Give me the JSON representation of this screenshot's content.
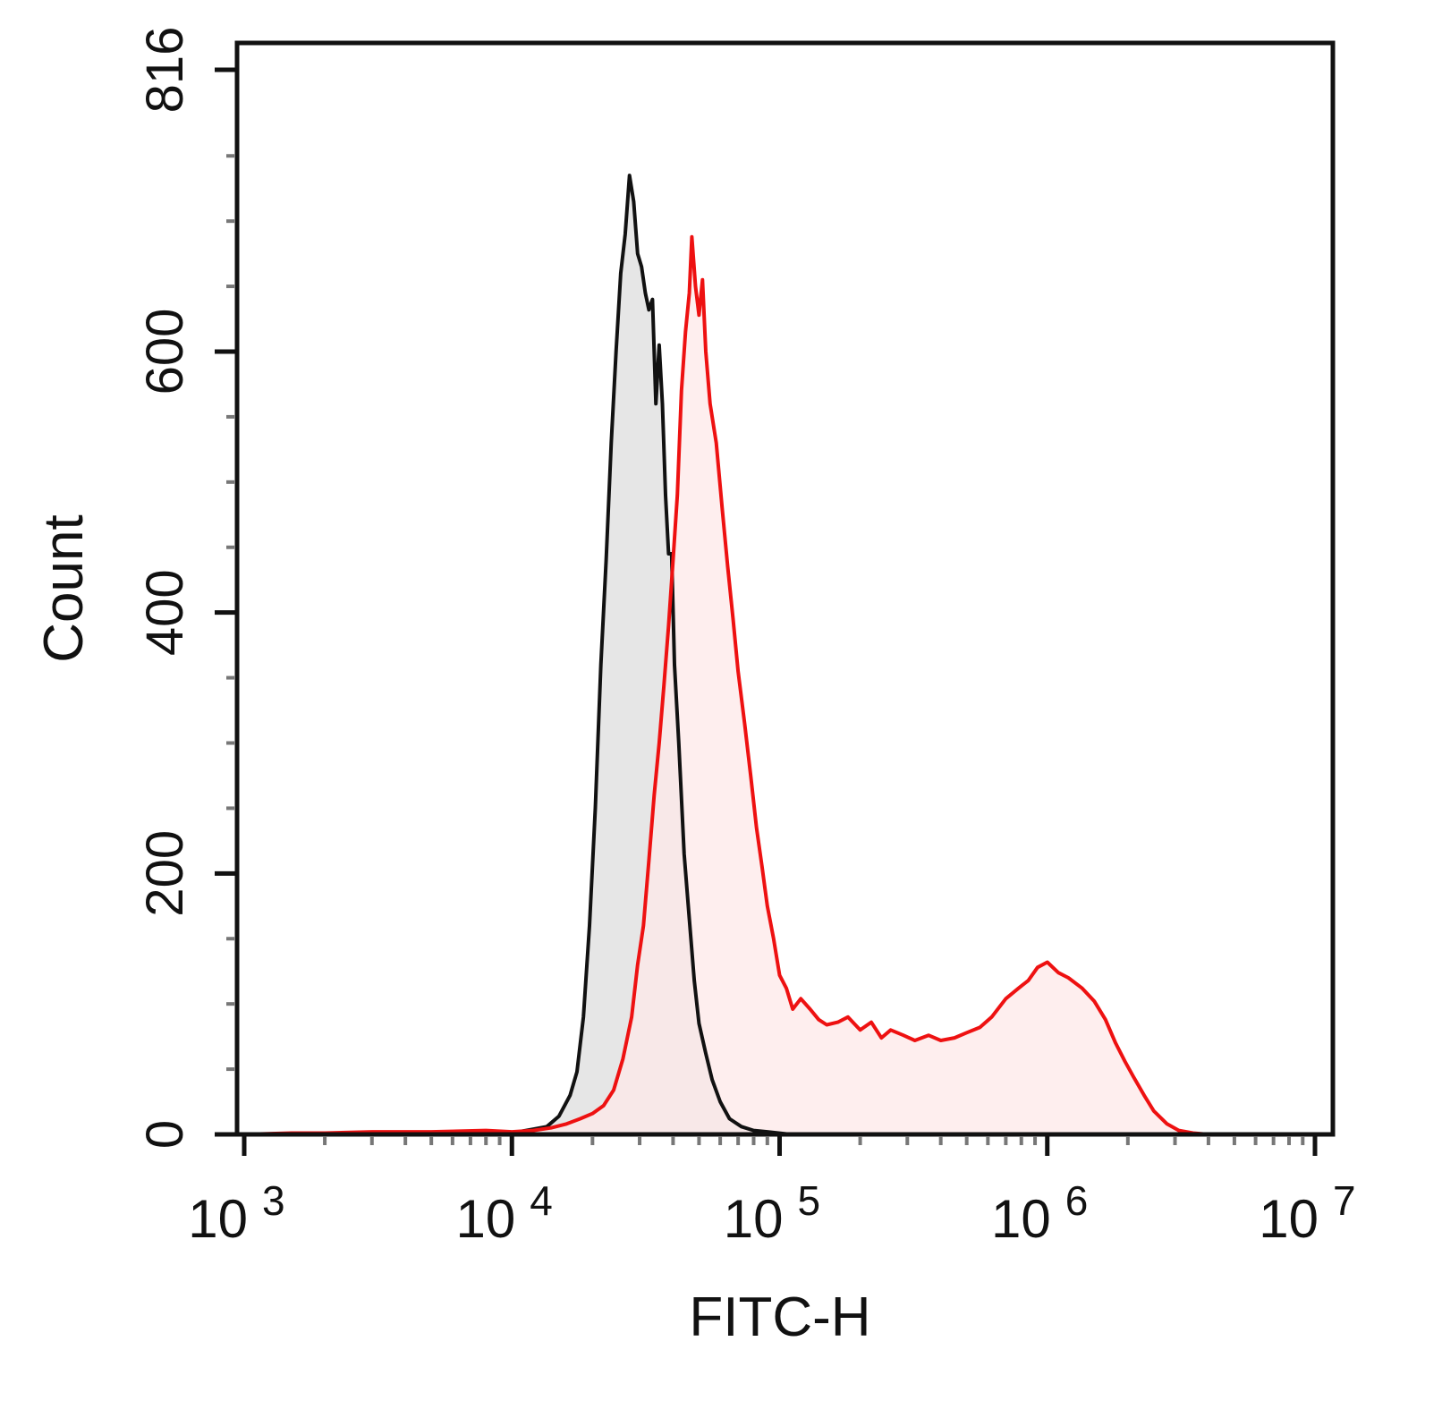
{
  "chart_data": {
    "type": "area",
    "title": "",
    "xlabel": "FITC-H",
    "ylabel": "Count",
    "x_scale": "log",
    "xlim": [
      1000,
      10000000
    ],
    "ylim": [
      0,
      816
    ],
    "y_ticks": [
      "0",
      "200",
      "400",
      "600",
      "816"
    ],
    "x_ticks": [
      {
        "base": "10",
        "exp": "3"
      },
      {
        "base": "10",
        "exp": "4"
      },
      {
        "base": "10",
        "exp": "5"
      },
      {
        "base": "10",
        "exp": "6"
      },
      {
        "base": "10",
        "exp": "7"
      }
    ],
    "grid": false,
    "legend": "none",
    "series": [
      {
        "color": "#111111",
        "fill": "#e6e6e6",
        "points": [
          [
            1000,
            0
          ],
          [
            2000,
            1
          ],
          [
            4000,
            1
          ],
          [
            7000,
            2
          ],
          [
            10000,
            1
          ],
          [
            12000,
            4
          ],
          [
            13500,
            6
          ],
          [
            15000,
            14
          ],
          [
            16500,
            30
          ],
          [
            17500,
            48
          ],
          [
            18500,
            90
          ],
          [
            19500,
            160
          ],
          [
            20500,
            250
          ],
          [
            21500,
            360
          ],
          [
            22500,
            440
          ],
          [
            23500,
            530
          ],
          [
            24500,
            600
          ],
          [
            25500,
            660
          ],
          [
            26500,
            690
          ],
          [
            27500,
            735
          ],
          [
            28500,
            715
          ],
          [
            29500,
            675
          ],
          [
            30500,
            665
          ],
          [
            31500,
            645
          ],
          [
            32500,
            632
          ],
          [
            33500,
            640
          ],
          [
            34500,
            560
          ],
          [
            35500,
            605
          ],
          [
            36500,
            560
          ],
          [
            37500,
            490
          ],
          [
            38500,
            445
          ],
          [
            39500,
            445
          ],
          [
            40500,
            360
          ],
          [
            42000,
            300
          ],
          [
            44000,
            215
          ],
          [
            46000,
            165
          ],
          [
            48000,
            118
          ],
          [
            50000,
            85
          ],
          [
            53000,
            62
          ],
          [
            56000,
            42
          ],
          [
            60000,
            25
          ],
          [
            65000,
            12
          ],
          [
            72000,
            6
          ],
          [
            80000,
            3
          ],
          [
            90000,
            2
          ],
          [
            110000,
            0
          ],
          [
            200000,
            0
          ],
          [
            1000000,
            0
          ],
          [
            10000000,
            0
          ]
        ]
      },
      {
        "color": "#ee1111",
        "fill": "#fde8e8",
        "points": [
          [
            1000,
            0
          ],
          [
            1500,
            1
          ],
          [
            2000,
            1
          ],
          [
            3000,
            2
          ],
          [
            5000,
            2
          ],
          [
            8000,
            3
          ],
          [
            10000,
            2
          ],
          [
            12000,
            3
          ],
          [
            14000,
            5
          ],
          [
            16000,
            8
          ],
          [
            18000,
            12
          ],
          [
            20000,
            16
          ],
          [
            22000,
            22
          ],
          [
            24000,
            34
          ],
          [
            26000,
            58
          ],
          [
            28000,
            90
          ],
          [
            29500,
            130
          ],
          [
            31000,
            160
          ],
          [
            32500,
            210
          ],
          [
            34000,
            260
          ],
          [
            35500,
            300
          ],
          [
            37000,
            345
          ],
          [
            38500,
            390
          ],
          [
            40000,
            440
          ],
          [
            41500,
            490
          ],
          [
            43000,
            570
          ],
          [
            44500,
            615
          ],
          [
            46000,
            645
          ],
          [
            47000,
            688
          ],
          [
            48500,
            650
          ],
          [
            50000,
            628
          ],
          [
            51500,
            655
          ],
          [
            53000,
            600
          ],
          [
            55000,
            560
          ],
          [
            58000,
            530
          ],
          [
            61000,
            480
          ],
          [
            64000,
            435
          ],
          [
            67000,
            395
          ],
          [
            70000,
            355
          ],
          [
            74000,
            315
          ],
          [
            78000,
            275
          ],
          [
            82000,
            235
          ],
          [
            86000,
            205
          ],
          [
            90000,
            175
          ],
          [
            95000,
            150
          ],
          [
            100000,
            122
          ],
          [
            106000,
            112
          ],
          [
            112000,
            96
          ],
          [
            120000,
            104
          ],
          [
            130000,
            96
          ],
          [
            140000,
            88
          ],
          [
            150000,
            84
          ],
          [
            165000,
            86
          ],
          [
            180000,
            90
          ],
          [
            200000,
            80
          ],
          [
            220000,
            86
          ],
          [
            240000,
            74
          ],
          [
            260000,
            80
          ],
          [
            290000,
            76
          ],
          [
            320000,
            72
          ],
          [
            360000,
            76
          ],
          [
            400000,
            72
          ],
          [
            450000,
            74
          ],
          [
            500000,
            78
          ],
          [
            560000,
            82
          ],
          [
            620000,
            90
          ],
          [
            700000,
            104
          ],
          [
            780000,
            112
          ],
          [
            850000,
            118
          ],
          [
            920000,
            128
          ],
          [
            1000000,
            132
          ],
          [
            1100000,
            124
          ],
          [
            1200000,
            120
          ],
          [
            1350000,
            112
          ],
          [
            1500000,
            102
          ],
          [
            1650000,
            88
          ],
          [
            1800000,
            70
          ],
          [
            1950000,
            56
          ],
          [
            2100000,
            44
          ],
          [
            2300000,
            30
          ],
          [
            2500000,
            18
          ],
          [
            2800000,
            8
          ],
          [
            3100000,
            3
          ],
          [
            3500000,
            1
          ],
          [
            4000000,
            0
          ],
          [
            10000000,
            0
          ]
        ]
      }
    ]
  }
}
